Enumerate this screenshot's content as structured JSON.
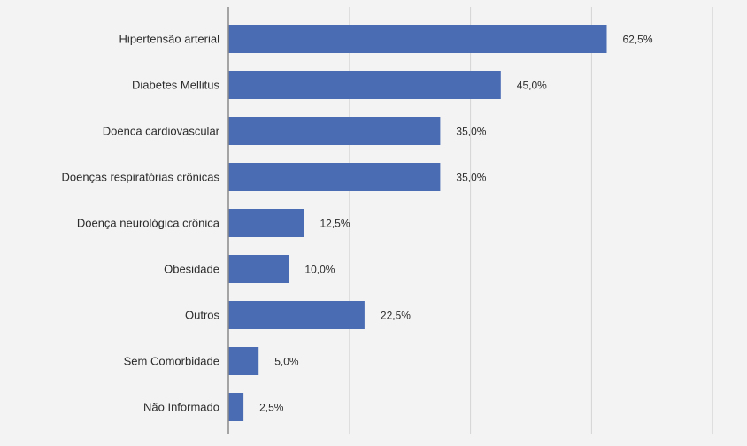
{
  "chart_data": {
    "type": "bar",
    "orientation": "horizontal",
    "categories": [
      "Hipertensão arterial",
      "Diabetes Mellitus",
      "Doenca cardiovascular",
      "Doenças respiratórias crônicas",
      "Doença neurológica crônica",
      "Obesidade",
      "Outros",
      "Sem Comorbidade",
      "Não Informado"
    ],
    "values": [
      62.5,
      45.0,
      35.0,
      35.0,
      12.5,
      10.0,
      22.5,
      5.0,
      2.5
    ],
    "value_labels": [
      "62,5%",
      "45,0%",
      "35,0%",
      "35,0%",
      "12,5%",
      "10,0%",
      "22,5%",
      "5,0%",
      "2,5%"
    ],
    "xlim": [
      0,
      80
    ],
    "grid": true,
    "bar_color": "#4a6cb3",
    "title": "",
    "xlabel": "",
    "ylabel": ""
  }
}
